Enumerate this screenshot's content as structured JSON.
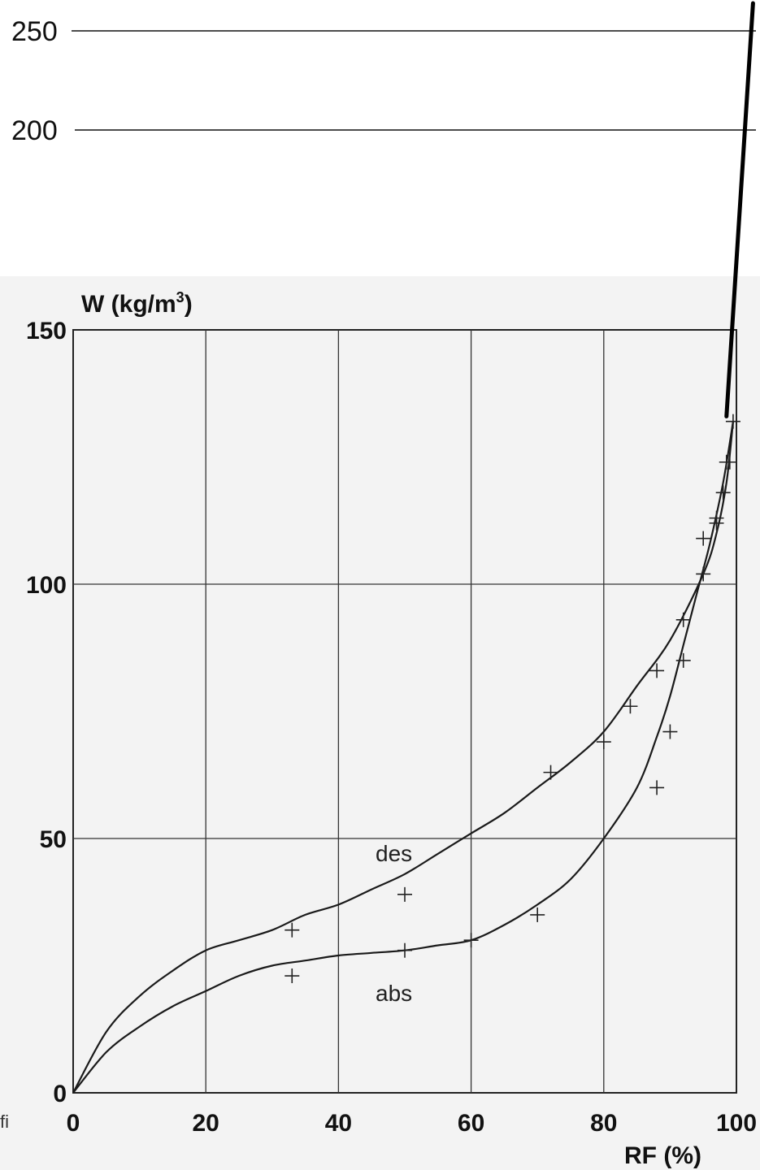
{
  "chart_data": {
    "type": "line",
    "ylabel_main": "W  (kg/m",
    "ylabel_sup": "3",
    "ylabel_close": ")",
    "xlabel": "RF  (%)",
    "xlim": [
      0,
      100
    ],
    "ylim": [
      0,
      150
    ],
    "grid": true,
    "x_ticks": [
      "0",
      "20",
      "40",
      "60",
      "80",
      "100"
    ],
    "y_ticks": [
      "0",
      "50",
      "100",
      "150"
    ],
    "x_tick_values": [
      0,
      20,
      40,
      60,
      80,
      100
    ],
    "y_tick_values": [
      0,
      50,
      100,
      150
    ],
    "extended_ticks": [
      "200",
      "250"
    ],
    "extended_tick_values": [
      200,
      250
    ],
    "annotation_line": [
      [
        98.5,
        133
      ],
      [
        102.5,
        266
      ]
    ],
    "margin_note": "fi",
    "series": [
      {
        "name": "des",
        "curve": [
          [
            0,
            0
          ],
          [
            5,
            12
          ],
          [
            10,
            19
          ],
          [
            15,
            24
          ],
          [
            20,
            28
          ],
          [
            25,
            30
          ],
          [
            30,
            32
          ],
          [
            35,
            35
          ],
          [
            40,
            37
          ],
          [
            45,
            40
          ],
          [
            50,
            43
          ],
          [
            55,
            47
          ],
          [
            60,
            51
          ],
          [
            65,
            55
          ],
          [
            70,
            60
          ],
          [
            75,
            65
          ],
          [
            80,
            71
          ],
          [
            85,
            80
          ],
          [
            90,
            89
          ],
          [
            95,
            102
          ],
          [
            97,
            110
          ],
          [
            98.5,
            120
          ],
          [
            99.5,
            132
          ]
        ],
        "markers": [
          [
            33,
            32
          ],
          [
            50,
            39
          ],
          [
            72,
            63
          ],
          [
            80,
            69
          ],
          [
            84,
            76
          ],
          [
            88,
            83
          ],
          [
            92,
            93
          ],
          [
            95,
            102
          ],
          [
            97,
            112
          ],
          [
            98,
            118
          ],
          [
            99,
            124
          ],
          [
            99.5,
            132
          ]
        ]
      },
      {
        "name": "abs",
        "curve": [
          [
            0,
            0
          ],
          [
            5,
            8
          ],
          [
            10,
            13
          ],
          [
            15,
            17
          ],
          [
            20,
            20
          ],
          [
            25,
            23
          ],
          [
            30,
            25
          ],
          [
            35,
            26
          ],
          [
            40,
            27
          ],
          [
            45,
            27.5
          ],
          [
            50,
            28
          ],
          [
            55,
            29
          ],
          [
            60,
            30
          ],
          [
            65,
            33
          ],
          [
            70,
            37
          ],
          [
            75,
            42
          ],
          [
            80,
            50
          ],
          [
            85,
            60
          ],
          [
            88,
            70
          ],
          [
            90,
            78
          ],
          [
            92,
            88
          ],
          [
            94,
            98
          ],
          [
            96,
            108
          ],
          [
            98,
            120
          ],
          [
            99.5,
            132
          ]
        ],
        "markers": [
          [
            33,
            23
          ],
          [
            50,
            28
          ],
          [
            60,
            30
          ],
          [
            70,
            35
          ],
          [
            88,
            60
          ],
          [
            90,
            71
          ],
          [
            92,
            85
          ],
          [
            95,
            109
          ],
          [
            97,
            113
          ],
          [
            98.5,
            124
          ]
        ]
      }
    ]
  }
}
